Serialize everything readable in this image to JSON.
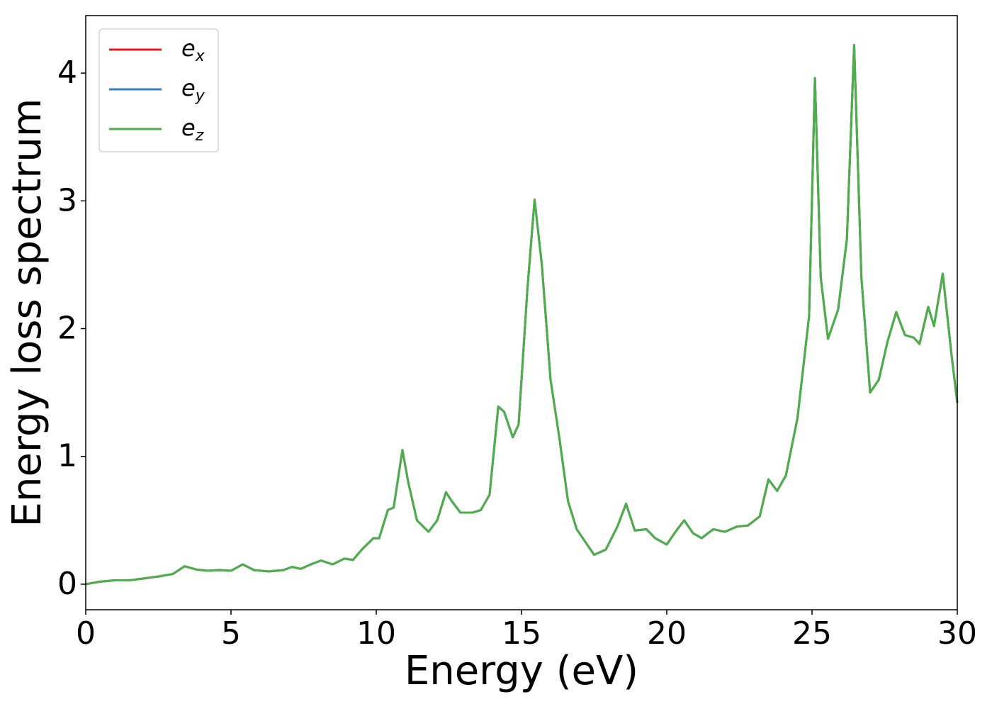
{
  "chart_data": {
    "type": "line",
    "xlabel": "Energy (eV)",
    "ylabel": "Energy loss spectrum",
    "x": [
      0,
      0.5,
      1,
      1.5,
      2,
      2.5,
      3,
      3.4,
      3.8,
      4.2,
      4.6,
      5,
      5.4,
      5.8,
      6.3,
      6.8,
      7.1,
      7.4,
      7.8,
      8.1,
      8.5,
      8.9,
      9.2,
      9.5,
      9.9,
      10.1,
      10.4,
      10.6,
      10.9,
      11.1,
      11.4,
      11.8,
      12.1,
      12.4,
      12.6,
      12.9,
      13.3,
      13.6,
      13.9,
      14.2,
      14.4,
      14.7,
      14.9,
      15.2,
      15.45,
      15.7,
      16,
      16.3,
      16.6,
      16.9,
      17.2,
      17.5,
      17.9,
      18.3,
      18.6,
      18.9,
      19.3,
      19.6,
      20,
      20.3,
      20.6,
      20.9,
      21.2,
      21.6,
      22,
      22.4,
      22.8,
      23.2,
      23.5,
      23.8,
      24.1,
      24.5,
      24.9,
      25.1,
      25.3,
      25.55,
      25.9,
      26.2,
      26.45,
      26.7,
      27,
      27.3,
      27.6,
      27.9,
      28.2,
      28.5,
      28.7,
      29,
      29.2,
      29.5,
      29.8,
      30
    ],
    "series": [
      {
        "name": "ex",
        "color": "#e41a1c",
        "values": [
          0,
          0.02,
          0.03,
          0.03,
          0.045,
          0.06,
          0.08,
          0.14,
          0.115,
          0.105,
          0.11,
          0.105,
          0.155,
          0.11,
          0.1,
          0.11,
          0.135,
          0.12,
          0.16,
          0.185,
          0.155,
          0.2,
          0.19,
          0.27,
          0.36,
          0.36,
          0.58,
          0.6,
          1.05,
          0.8,
          0.5,
          0.41,
          0.5,
          0.72,
          0.65,
          0.56,
          0.56,
          0.58,
          0.7,
          1.39,
          1.35,
          1.15,
          1.25,
          2.3,
          3.01,
          2.5,
          1.6,
          1.15,
          0.65,
          0.43,
          0.33,
          0.23,
          0.27,
          0.45,
          0.63,
          0.42,
          0.43,
          0.36,
          0.31,
          0.41,
          0.5,
          0.4,
          0.36,
          0.43,
          0.41,
          0.45,
          0.46,
          0.53,
          0.82,
          0.73,
          0.85,
          1.3,
          2.1,
          3.96,
          2.4,
          1.92,
          2.15,
          2.7,
          4.22,
          2.4,
          1.5,
          1.6,
          1.9,
          2.13,
          1.95,
          1.93,
          1.88,
          2.17,
          2.02,
          2.43,
          1.8,
          1.42
        ]
      },
      {
        "name": "ey",
        "color": "#377eb8",
        "values": [
          0,
          0.02,
          0.03,
          0.03,
          0.045,
          0.06,
          0.08,
          0.14,
          0.115,
          0.105,
          0.11,
          0.105,
          0.155,
          0.11,
          0.1,
          0.11,
          0.135,
          0.12,
          0.16,
          0.185,
          0.155,
          0.2,
          0.19,
          0.27,
          0.36,
          0.36,
          0.58,
          0.6,
          1.05,
          0.8,
          0.5,
          0.41,
          0.5,
          0.72,
          0.65,
          0.56,
          0.56,
          0.58,
          0.7,
          1.39,
          1.35,
          1.15,
          1.25,
          2.3,
          3.01,
          2.5,
          1.6,
          1.15,
          0.65,
          0.43,
          0.33,
          0.23,
          0.27,
          0.45,
          0.63,
          0.42,
          0.43,
          0.36,
          0.31,
          0.41,
          0.5,
          0.4,
          0.36,
          0.43,
          0.41,
          0.45,
          0.46,
          0.53,
          0.82,
          0.73,
          0.85,
          1.3,
          2.1,
          3.96,
          2.4,
          1.92,
          2.15,
          2.7,
          4.22,
          2.4,
          1.5,
          1.6,
          1.9,
          2.13,
          1.95,
          1.93,
          1.88,
          2.17,
          2.02,
          2.43,
          1.8,
          1.42
        ]
      },
      {
        "name": "ez",
        "color": "#4daf4a",
        "values": [
          0,
          0.02,
          0.03,
          0.03,
          0.045,
          0.06,
          0.08,
          0.14,
          0.115,
          0.105,
          0.11,
          0.105,
          0.155,
          0.11,
          0.1,
          0.11,
          0.135,
          0.12,
          0.16,
          0.185,
          0.155,
          0.2,
          0.19,
          0.27,
          0.36,
          0.36,
          0.58,
          0.6,
          1.05,
          0.8,
          0.5,
          0.41,
          0.5,
          0.72,
          0.65,
          0.56,
          0.56,
          0.58,
          0.7,
          1.39,
          1.35,
          1.15,
          1.25,
          2.3,
          3.01,
          2.5,
          1.6,
          1.15,
          0.65,
          0.43,
          0.33,
          0.23,
          0.27,
          0.45,
          0.63,
          0.42,
          0.43,
          0.36,
          0.31,
          0.41,
          0.5,
          0.4,
          0.36,
          0.43,
          0.41,
          0.45,
          0.46,
          0.53,
          0.82,
          0.73,
          0.85,
          1.3,
          2.1,
          3.96,
          2.4,
          1.92,
          2.15,
          2.7,
          4.22,
          2.4,
          1.5,
          1.6,
          1.9,
          2.13,
          1.95,
          1.93,
          1.88,
          2.17,
          2.02,
          2.43,
          1.8,
          1.42
        ]
      }
    ],
    "xlim": [
      0,
      30
    ],
    "xticks": [
      0,
      5,
      10,
      15,
      20,
      25,
      30
    ],
    "ylim": [
      -0.2,
      4.45
    ],
    "yticks": [
      0,
      1,
      2,
      3,
      4
    ],
    "legend": "upper left"
  }
}
